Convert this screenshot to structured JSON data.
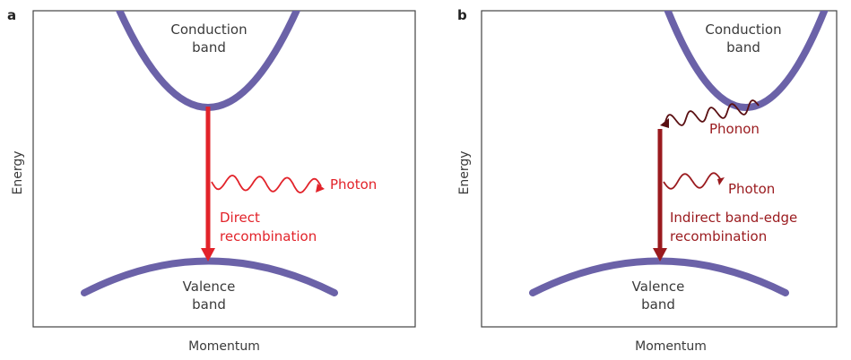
{
  "panel_a": {
    "letter": "a",
    "conduction_line1": "Conduction",
    "conduction_line2": "band",
    "valence_line1": "Valence",
    "valence_line2": "band",
    "photon": "Photon",
    "recomb_line1": "Direct",
    "recomb_line2": "recombination",
    "y_axis": "Energy",
    "x_axis": "Momentum"
  },
  "panel_b": {
    "letter": "b",
    "conduction_line1": "Conduction",
    "conduction_line2": "band",
    "valence_line1": "Valence",
    "valence_line2": "band",
    "phonon": "Phonon",
    "photon": "Photon",
    "recomb_line1": "Indirect band-edge",
    "recomb_line2": "recombination",
    "y_axis": "Energy",
    "x_axis": "Momentum"
  },
  "colors": {
    "band": "#6b62a8",
    "direct_arrow": "#e2232a",
    "indirect_arrow": "#9a1a1e",
    "phonon_wave": "#5a0f12",
    "frame": "#444444"
  }
}
